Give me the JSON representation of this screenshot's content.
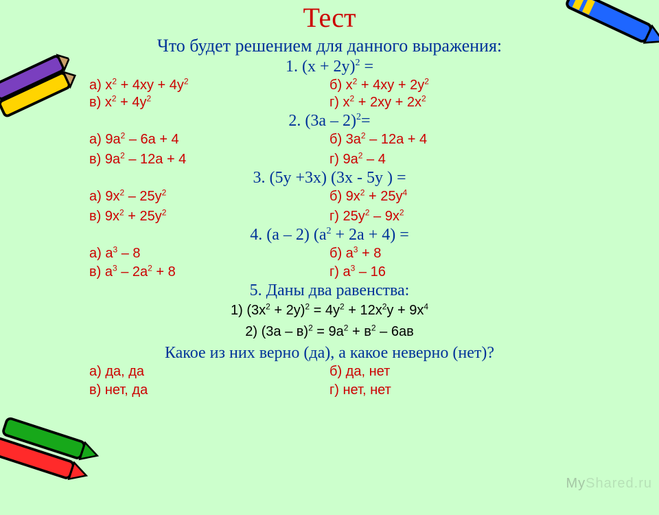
{
  "colors": {
    "background": "#ccffcc",
    "title": "#cc0000",
    "prompt": "#003399",
    "answer": "#cc0000",
    "body": "#000000"
  },
  "fonts": {
    "display": "Comic Sans MS",
    "body": "Arial",
    "title_size_pt": 40,
    "prompt_size_pt": 26,
    "question_size_pt": 24,
    "answer_size_pt": 20
  },
  "title": "Тест",
  "subtitle": "Что будет решением для данного выражения:",
  "questions": [
    {
      "num": "1.",
      "header_html": "(x + 2y)<sup>2</sup> =",
      "options": {
        "a_html": "а) x<sup>2</sup> + 4xy + 4y<sup>2</sup>",
        "b_html": "б) x<sup>2</sup> + 4xy + 2y<sup>2</sup>",
        "v_html": "в) x<sup>2</sup> + 4y<sup>2</sup>",
        "g_html": "г) x<sup>2</sup> + 2xy + 2x<sup>2</sup>"
      }
    },
    {
      "num": "2.",
      "header_html": "(3a – 2)<sup>2</sup>=",
      "options": {
        "a_html": "а) 9a<sup>2</sup> – 6a + 4",
        "b_html": "б) 3a<sup>2</sup> – 12a + 4",
        "v_html": "в) 9a<sup>2</sup> – 12a + 4",
        "g_html": "г) 9a<sup>2</sup> – 4"
      }
    },
    {
      "num": "3.",
      "header_html": "(5y +3x) (3x - 5y ) =",
      "options": {
        "a_html": "а) 9x<sup>2</sup> – 25y<sup>2</sup>",
        "b_html": "б) 9x<sup>2</sup> + 25y<sup>4</sup>",
        "v_html": "в) 9x<sup>2</sup> + 25y<sup>2</sup>",
        "g_html": "г) 25y<sup>2</sup> – 9x<sup>2</sup>"
      }
    },
    {
      "num": "4.",
      "header_html": "(a – 2) (a<sup>2</sup> + 2a + 4) =",
      "options": {
        "a_html": "а) a<sup>3</sup> – 8",
        "b_html": "б) a<sup>3</sup> + 8",
        "v_html": "в) a<sup>3</sup> – 2a<sup>2</sup> + 8",
        "g_html": "г) a<sup>3</sup> – 16"
      }
    }
  ],
  "q5": {
    "num": "5.",
    "header": "Даны два равенства:",
    "stmt1_html": "1) (3x<sup>2</sup> + 2y)<sup>2</sup> = 4y<sup>2</sup> + 12x<sup>2</sup>y + 9x<sup>4</sup>",
    "stmt2_html": "2) (3a – в)<sup>2</sup> = 9a<sup>2</sup> + в<sup>2</sup> – 6ав",
    "ask": "Какое из них верно (да), а какое неверно (нет)?",
    "options": {
      "a": "а) да, да",
      "b": "б) да, нет",
      "v": "в) нет, да",
      "g": "г) нет, нет"
    }
  },
  "watermark": {
    "bold": "My",
    "rest": "Shared.ru"
  }
}
